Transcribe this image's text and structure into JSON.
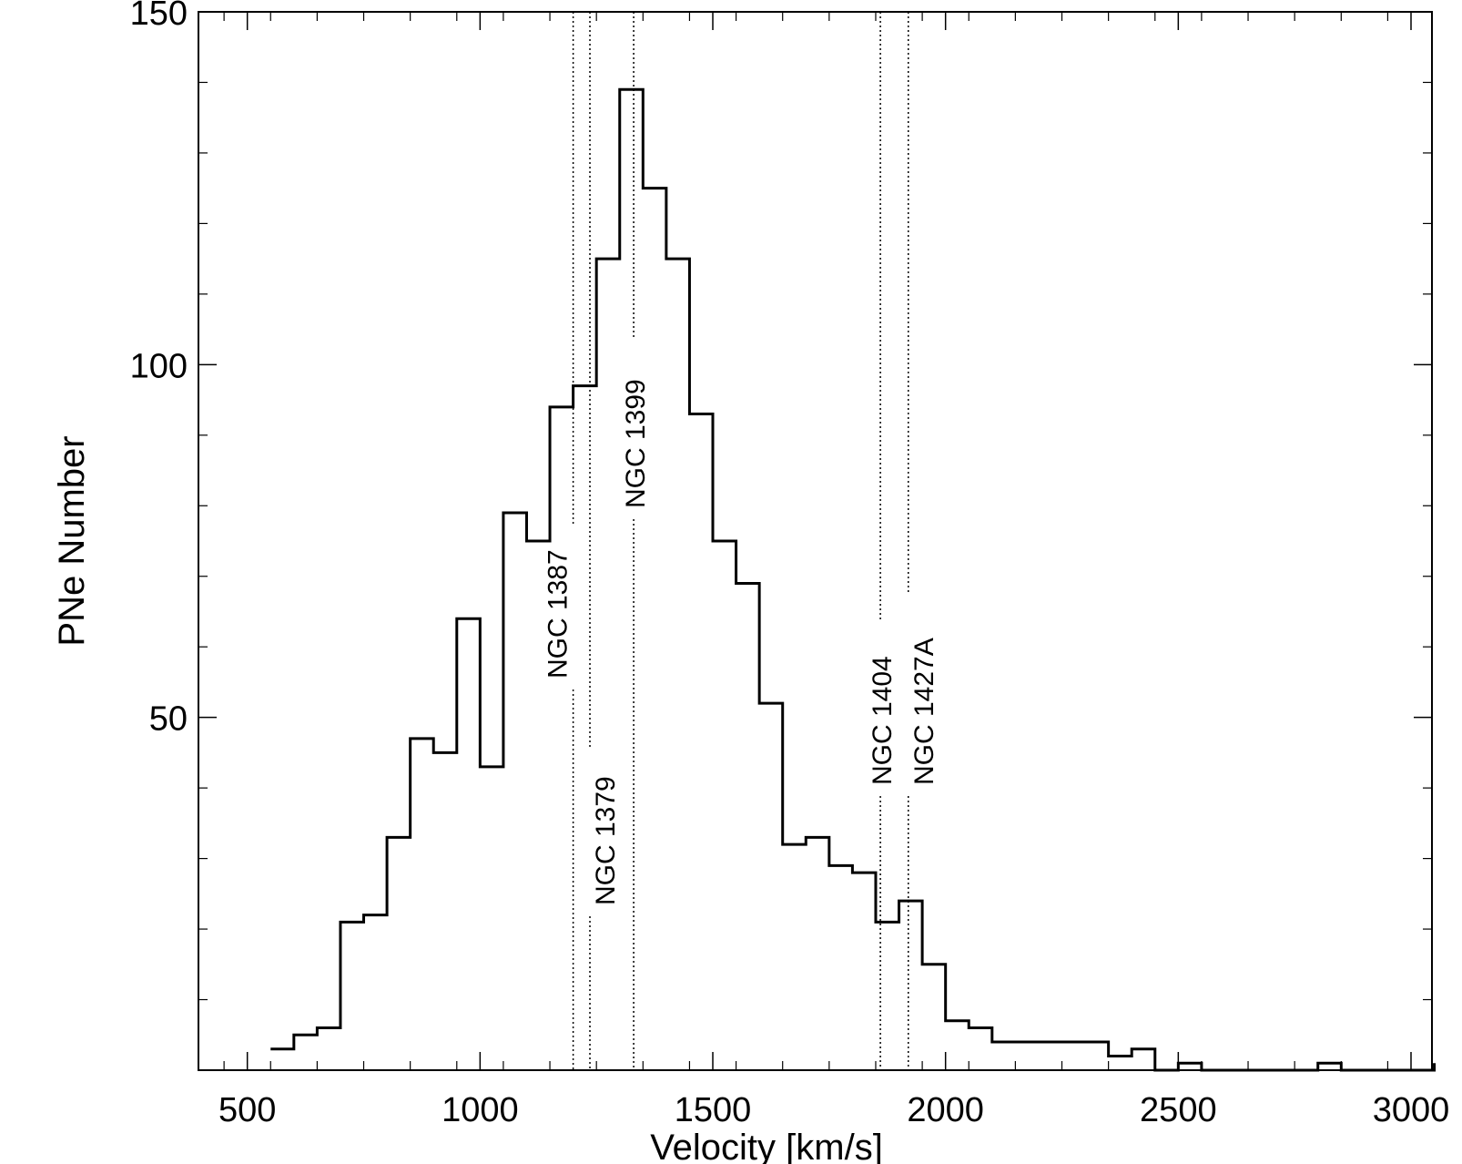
{
  "chart_data": {
    "type": "line",
    "title": "",
    "xlabel": "Velocity [km/s]",
    "ylabel": "PNe Number",
    "xlim": [
      395,
      3045
    ],
    "ylim": [
      0,
      150
    ],
    "x_ticks": [
      500,
      1000,
      1500,
      2000,
      2500,
      3000
    ],
    "x_tick_labels": [
      "500",
      "1000",
      "1500",
      "2000",
      "2500",
      "3000"
    ],
    "y_ticks": [
      50,
      100,
      150
    ],
    "y_tick_labels": [
      "50",
      "100",
      "150"
    ],
    "grid": false,
    "legend": "none",
    "series": [
      {
        "style": "steps-post",
        "color": "#000000",
        "points": [
          {
            "x": 550,
            "y": 3
          },
          {
            "x": 600,
            "y": 5
          },
          {
            "x": 650,
            "y": 6
          },
          {
            "x": 700,
            "y": 21
          },
          {
            "x": 750,
            "y": 22
          },
          {
            "x": 800,
            "y": 33
          },
          {
            "x": 850,
            "y": 47
          },
          {
            "x": 900,
            "y": 45
          },
          {
            "x": 950,
            "y": 64
          },
          {
            "x": 1000,
            "y": 43
          },
          {
            "x": 1050,
            "y": 79
          },
          {
            "x": 1100,
            "y": 75
          },
          {
            "x": 1150,
            "y": 94
          },
          {
            "x": 1200,
            "y": 97
          },
          {
            "x": 1250,
            "y": 115
          },
          {
            "x": 1300,
            "y": 139
          },
          {
            "x": 1350,
            "y": 125
          },
          {
            "x": 1400,
            "y": 115
          },
          {
            "x": 1450,
            "y": 93
          },
          {
            "x": 1500,
            "y": 75
          },
          {
            "x": 1550,
            "y": 69
          },
          {
            "x": 1600,
            "y": 52
          },
          {
            "x": 1650,
            "y": 32
          },
          {
            "x": 1700,
            "y": 33
          },
          {
            "x": 1750,
            "y": 29
          },
          {
            "x": 1800,
            "y": 28
          },
          {
            "x": 1850,
            "y": 21
          },
          {
            "x": 1900,
            "y": 24
          },
          {
            "x": 1950,
            "y": 15
          },
          {
            "x": 2000,
            "y": 7
          },
          {
            "x": 2050,
            "y": 6
          },
          {
            "x": 2100,
            "y": 4
          },
          {
            "x": 2350,
            "y": 2
          },
          {
            "x": 2400,
            "y": 3
          },
          {
            "x": 2450,
            "y": 0
          },
          {
            "x": 2500,
            "y": 1
          },
          {
            "x": 2550,
            "y": 0
          },
          {
            "x": 2800,
            "y": 1
          },
          {
            "x": 2850,
            "y": 0
          },
          {
            "x": 3050,
            "y": 1
          }
        ]
      }
    ],
    "annotations": [
      {
        "label": "NGC 1387",
        "x": 1200
      },
      {
        "label": "NGC 1379",
        "x": 1236
      },
      {
        "label": "NGC 1399",
        "x": 1330
      },
      {
        "label": "NGC 1404",
        "x": 1860
      },
      {
        "label": "NGC 1427A",
        "x": 1920
      }
    ]
  }
}
